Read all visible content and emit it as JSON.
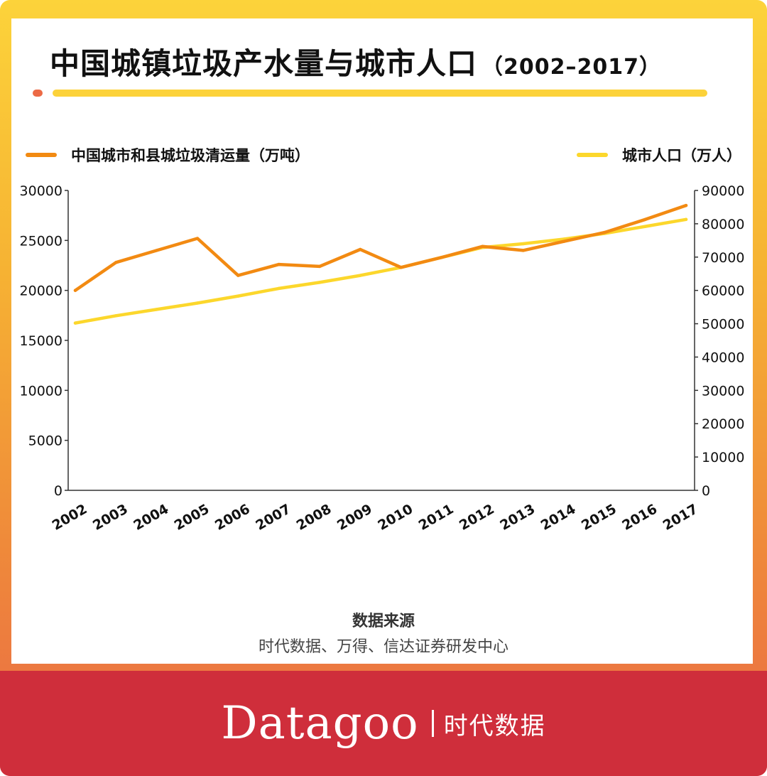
{
  "header": {
    "title": "中国城镇垃圾产水量与城市人口",
    "title_range": "（2002–2017）"
  },
  "source": {
    "heading": "数据来源",
    "text": "时代数据、万得、信达证券研发中心"
  },
  "footer": {
    "brand": "Datagoo",
    "brand_cn": "时代数据"
  },
  "colors": {
    "garbage_line": "#f28a12",
    "population_line": "#fcd72c",
    "axis": "#333333"
  },
  "chart_data": {
    "type": "line",
    "x": [
      "2002",
      "2003",
      "2004",
      "2005",
      "2006",
      "2007",
      "2008",
      "2009",
      "2010",
      "2011",
      "2012",
      "2013",
      "2014",
      "2015",
      "2016",
      "2017"
    ],
    "legend_placement": "top",
    "grid": false,
    "y_left": {
      "ylim": [
        0,
        30000
      ],
      "ticks": [
        0,
        5000,
        10000,
        15000,
        20000,
        25000,
        30000
      ]
    },
    "y_right": {
      "ylim": [
        0,
        90000
      ],
      "ticks": [
        0,
        10000,
        20000,
        30000,
        40000,
        50000,
        60000,
        70000,
        80000,
        90000
      ]
    },
    "series": [
      {
        "name": "中国城市和县城垃圾清运量（万吨）",
        "axis": "left",
        "values": [
          20000,
          22800,
          24000,
          25200,
          21500,
          22600,
          22400,
          24100,
          22300,
          23300,
          24400,
          24000,
          24900,
          25800,
          27100,
          28500
        ]
      },
      {
        "name": "城市人口（万人）",
        "axis": "right",
        "values": [
          50200,
          52400,
          54300,
          56200,
          58300,
          60600,
          62400,
          64500,
          66900,
          69900,
          72900,
          74000,
          75400,
          77100,
          79200,
          81300
        ]
      }
    ]
  }
}
